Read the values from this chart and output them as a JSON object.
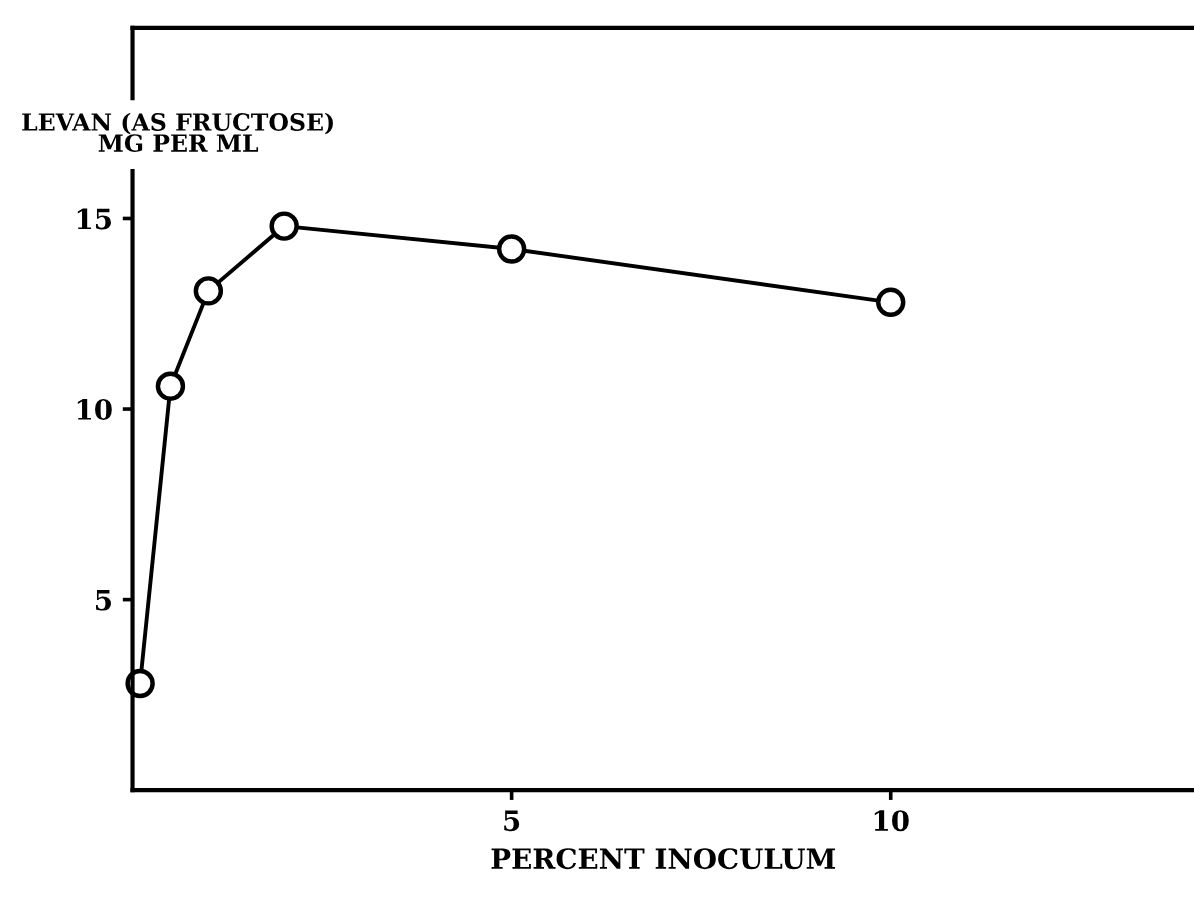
{
  "chart_data": {
    "type": "line",
    "xlabel": "PERCENT INOCULUM",
    "ylabel": "LEVAN (AS FRUCTOSE)\nMG PER ML",
    "x": [
      0.1,
      0.5,
      1,
      2,
      5,
      10
    ],
    "series": [
      {
        "color": "#000000",
        "values": [
          2.8,
          10.6,
          13.1,
          14.8,
          14.2,
          12.8
        ]
      }
    ],
    "marker": "circle",
    "line_style": "solid",
    "xlim": [
      0,
      14
    ],
    "xticks": [
      5,
      10
    ],
    "ylim": [
      0,
      20
    ],
    "yticks": [
      5,
      10,
      15
    ],
    "grid": false
  }
}
